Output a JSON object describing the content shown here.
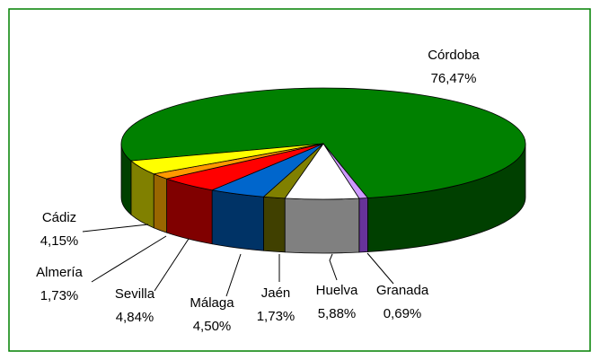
{
  "chart_data": {
    "type": "pie3d",
    "categories": [
      "Córdoba",
      "Granada",
      "Huelva",
      "Jaén",
      "Málaga",
      "Sevilla",
      "Almería",
      "Cádiz"
    ],
    "values": [
      76.47,
      0.69,
      5.88,
      1.73,
      4.5,
      4.84,
      1.73,
      4.15
    ],
    "value_labels": [
      "76,47%",
      "0,69%",
      "5,88%",
      "1,73%",
      "4,50%",
      "4,84%",
      "1,73%",
      "4,15%"
    ],
    "colors": [
      "#008000",
      "#cc99ff",
      "#ffffff",
      "#808000",
      "#0066cc",
      "#ff0000",
      "#ff9900",
      "#ffff00"
    ],
    "side_colors": [
      "#004000",
      "#663399",
      "#808080",
      "#404000",
      "#003366",
      "#800000",
      "#996600",
      "#808000"
    ]
  }
}
